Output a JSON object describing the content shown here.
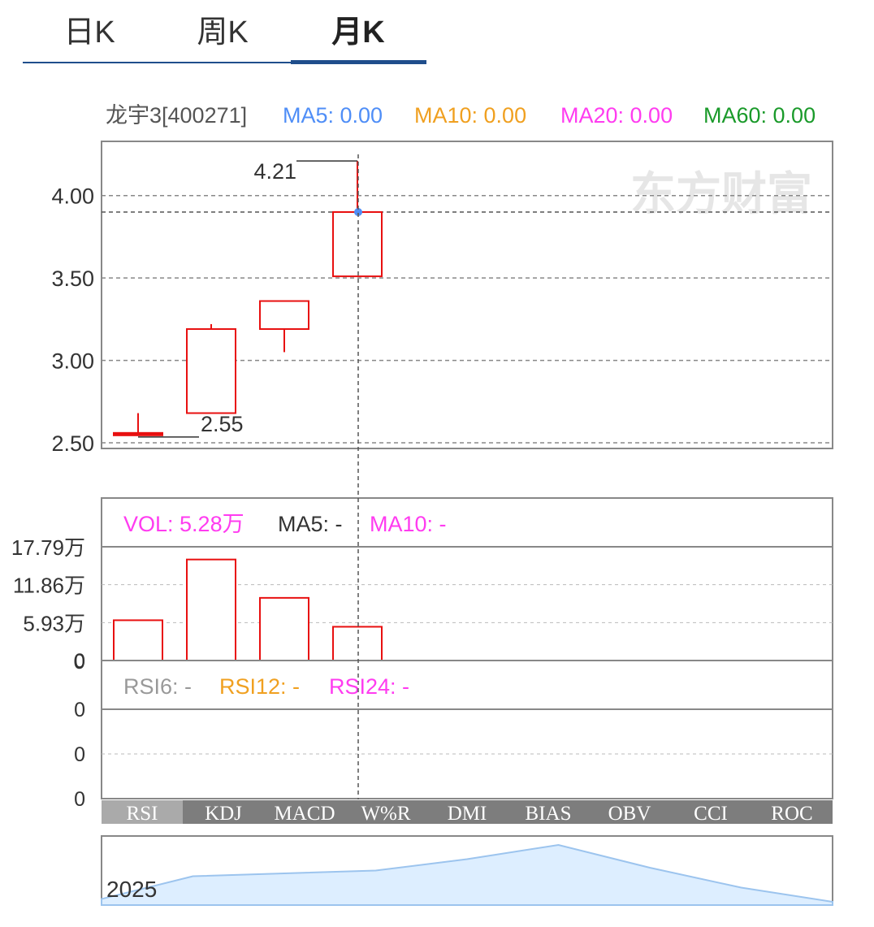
{
  "tabs": [
    {
      "label": "日K",
      "active": false
    },
    {
      "label": "周K",
      "active": false
    },
    {
      "label": "月K",
      "active": true
    }
  ],
  "header": {
    "stock": "龙宇3[400271]",
    "ma": [
      {
        "label": "MA5: 0.00",
        "color": "#4f8ef7"
      },
      {
        "label": "MA10: 0.00",
        "color": "#f0a020"
      },
      {
        "label": "MA20: 0.00",
        "color": "#ff3cf0"
      },
      {
        "label": "MA60: 0.00",
        "color": "#1a9a2a"
      }
    ]
  },
  "watermark": "东方财富",
  "chart_data": [
    {
      "type": "candlestick",
      "ylim": [
        2.5,
        4.25
      ],
      "y_ticks": [
        "4.00",
        "3.50",
        "3.00",
        "2.50"
      ],
      "y_tick_values": [
        4.0,
        3.5,
        3.0,
        2.5
      ],
      "candles": [
        {
          "open": 2.55,
          "close": 2.56,
          "high": 2.68,
          "low": 2.55
        },
        {
          "open": 2.68,
          "close": 3.19,
          "high": 3.22,
          "low": 2.68
        },
        {
          "open": 3.19,
          "close": 3.36,
          "high": 3.36,
          "low": 3.05
        },
        {
          "open": 3.51,
          "close": 3.9,
          "high": 4.21,
          "low": 3.51
        }
      ],
      "annotations": [
        {
          "label": "4.21",
          "value": 4.21,
          "type": "high"
        },
        {
          "label": "2.55",
          "value": 2.55,
          "type": "low"
        }
      ],
      "crosshair": {
        "index": 3,
        "value": 3.9
      },
      "colors": {
        "up": "#e81010",
        "grid": "#888888",
        "crosshair_dot": "#4f8ef7"
      }
    },
    {
      "type": "bar",
      "title_items": [
        {
          "label": "VOL: 5.28万",
          "color": "#ff3cf0"
        },
        {
          "label": "MA5: -",
          "color": "#333333"
        },
        {
          "label": "MA10: -",
          "color": "#ff3cf0"
        }
      ],
      "ylim": [
        0,
        17.79
      ],
      "y_ticks": [
        "17.79万",
        "11.86万",
        "5.93万",
        "0"
      ],
      "y_tick_values": [
        17.79,
        11.86,
        5.93,
        0
      ],
      "values": [
        6.3,
        15.8,
        9.8,
        5.28
      ],
      "unit": "万"
    },
    {
      "type": "line",
      "title_items": [
        {
          "label": "RSI6: -",
          "color": "#999999"
        },
        {
          "label": "RSI12: -",
          "color": "#f0a020"
        },
        {
          "label": "RSI24: -",
          "color": "#ff3cf0"
        }
      ],
      "y_ticks": [
        "0",
        "0",
        "0"
      ],
      "series": []
    },
    {
      "type": "area",
      "label": "2025",
      "values": [
        0.05,
        0.45,
        0.5,
        0.55,
        0.75,
        1.0,
        0.6,
        0.25,
        0.0
      ]
    }
  ],
  "indicator_tabs": [
    {
      "label": "RSI",
      "active": true
    },
    {
      "label": "KDJ",
      "active": false
    },
    {
      "label": "MACD",
      "active": false
    },
    {
      "label": "W%R",
      "active": false
    },
    {
      "label": "DMI",
      "active": false
    },
    {
      "label": "BIAS",
      "active": false
    },
    {
      "label": "OBV",
      "active": false
    },
    {
      "label": "CCI",
      "active": false
    },
    {
      "label": "ROC",
      "active": false
    }
  ]
}
